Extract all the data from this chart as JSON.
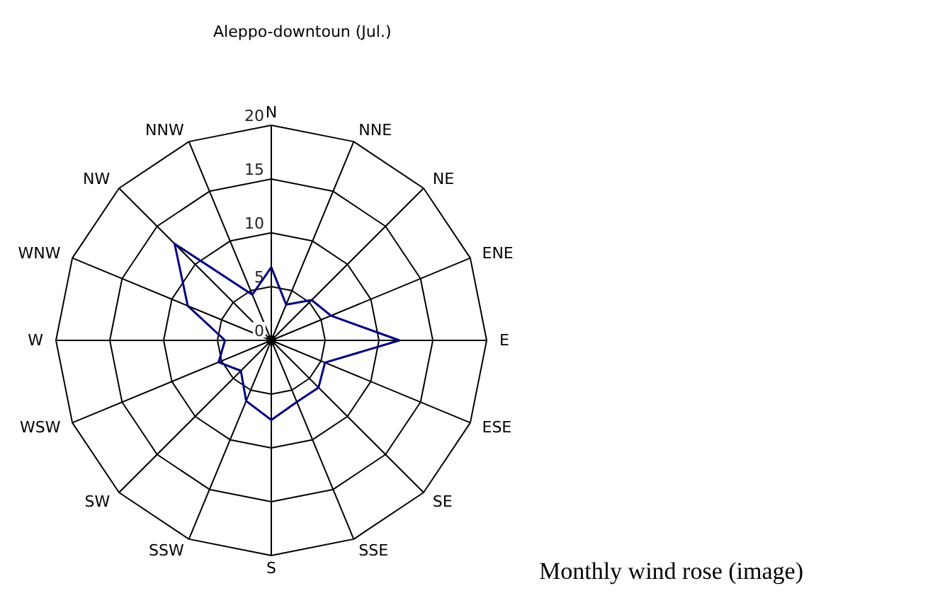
{
  "chart_data": {
    "type": "radar",
    "title": "Aleppo-downtoun (Jul.)",
    "categories": [
      "N",
      "NNE",
      "NE",
      "ENE",
      "E",
      "ESE",
      "SE",
      "SSE",
      "S",
      "SSW",
      "SW",
      "WSW",
      "W",
      "WNW",
      "NW",
      "NNW"
    ],
    "series": [
      {
        "color": "#000080",
        "values": [
          6.8,
          3.6,
          5.3,
          6.0,
          11.9,
          5.4,
          6.2,
          6.2,
          7.4,
          6.1,
          4.0,
          5.3,
          4.3,
          8.4,
          12.7,
          4.6
        ]
      }
    ],
    "ylim": [
      0,
      20
    ],
    "yticks": [
      0,
      5,
      10,
      15,
      20
    ],
    "grid": true,
    "annotations": [
      "Monthly wind rose (image)"
    ]
  }
}
